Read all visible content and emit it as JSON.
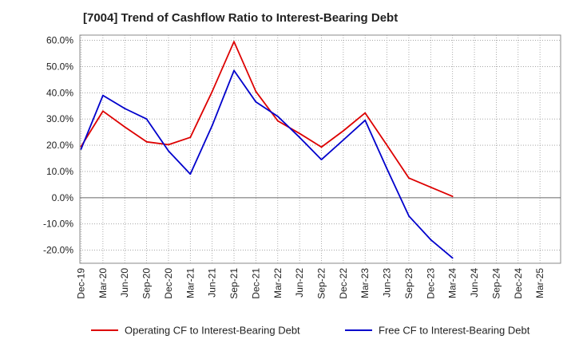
{
  "chart_data": {
    "type": "line",
    "title": "[7004]  Trend of Cashflow Ratio to Interest-Bearing Debt",
    "xlabel": "",
    "ylabel": "",
    "categories": [
      "Dec-19",
      "Mar-20",
      "Jun-20",
      "Sep-20",
      "Dec-20",
      "Mar-21",
      "Jun-21",
      "Sep-21",
      "Dec-21",
      "Mar-22",
      "Jun-22",
      "Sep-22",
      "Dec-22",
      "Mar-23",
      "Jun-23",
      "Sep-23",
      "Dec-23",
      "Mar-24",
      "Jun-24",
      "Sep-24",
      "Dec-24",
      "Mar-25"
    ],
    "y_ticks": [
      "60.0%",
      "50.0%",
      "40.0%",
      "30.0%",
      "20.0%",
      "10.0%",
      "0.0%",
      "-10.0%",
      "-20.0%"
    ],
    "ylim": [
      -25,
      62
    ],
    "grid": true,
    "legend_position": "bottom",
    "series": [
      {
        "name": "Operating CF to Interest-Bearing Debt",
        "color": "#dd0000",
        "values": [
          19.5,
          33.0,
          27.0,
          21.3,
          20.2,
          23.0,
          40.5,
          59.5,
          40.5,
          29.3,
          24.5,
          19.3,
          25.5,
          32.3,
          20.0,
          7.5,
          4.0,
          0.5,
          null,
          null,
          null,
          null
        ]
      },
      {
        "name": "Free CF to Interest-Bearing Debt",
        "color": "#0000cc",
        "values": [
          18.5,
          39.0,
          34.0,
          30.0,
          17.8,
          9.0,
          27.5,
          48.5,
          36.5,
          31.0,
          23.0,
          14.5,
          22.0,
          29.5,
          11.0,
          -7.0,
          -16.0,
          -23.0,
          null,
          null,
          null,
          null
        ]
      }
    ]
  }
}
